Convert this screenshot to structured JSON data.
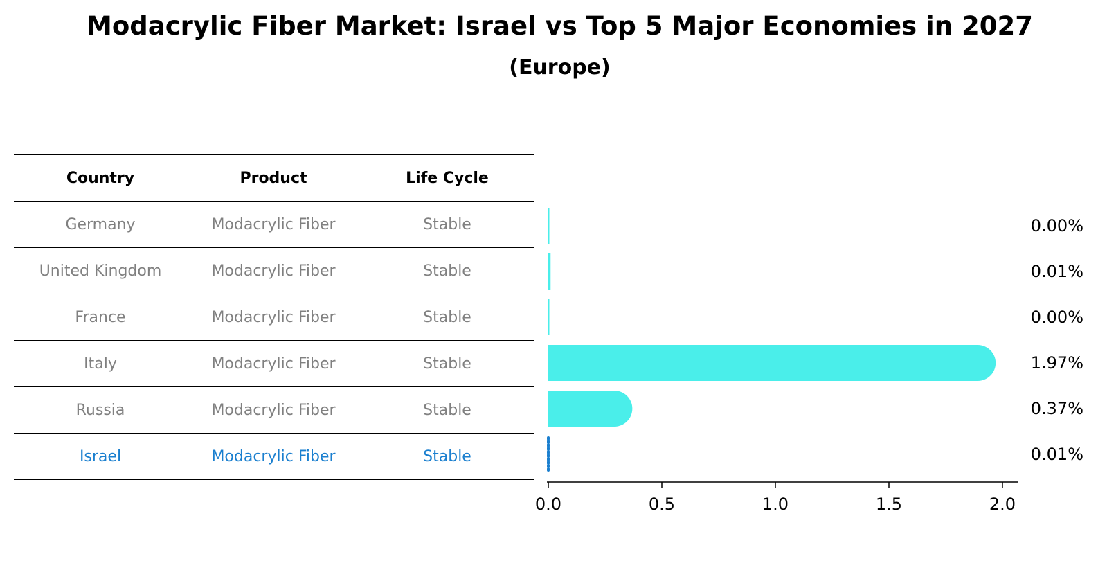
{
  "title": "Modacrylic Fiber Market: Israel vs Top 5 Major Economies in 2027",
  "subtitle": "(Europe)",
  "table": {
    "headers": [
      "Country",
      "Product",
      "Life Cycle"
    ],
    "rows": [
      {
        "country": "Germany",
        "product": "Modacrylic Fiber",
        "life_cycle": "Stable"
      },
      {
        "country": "United Kingdom",
        "product": "Modacrylic Fiber",
        "life_cycle": "Stable"
      },
      {
        "country": "France",
        "product": "Modacrylic Fiber",
        "life_cycle": "Stable"
      },
      {
        "country": "Italy",
        "product": "Modacrylic Fiber",
        "life_cycle": "Stable"
      },
      {
        "country": "Russia",
        "product": "Modacrylic Fiber",
        "life_cycle": "Stable"
      },
      {
        "country": "Israel",
        "product": "Modacrylic Fiber",
        "life_cycle": "Stable"
      }
    ]
  },
  "chart_data": {
    "type": "bar",
    "orientation": "horizontal",
    "categories": [
      "Germany",
      "United Kingdom",
      "France",
      "Italy",
      "Russia",
      "Israel"
    ],
    "values": [
      0.0,
      0.01,
      0.0,
      1.97,
      0.37,
      0.01
    ],
    "value_labels": [
      "0.00%",
      "0.01%",
      "0.00%",
      "1.97%",
      "0.37%",
      "0.01%"
    ],
    "xlim": [
      0,
      2.05
    ],
    "xticks": [
      0.0,
      0.5,
      1.0,
      1.5,
      2.0
    ],
    "xtick_labels": [
      "0.0",
      "0.5",
      "1.0",
      "1.5",
      "2.0"
    ],
    "highlight": "Israel",
    "grid": false,
    "colors": {
      "bar": "#4aeeea",
      "highlight_bar": "#1a7fcf",
      "highlight_text": "#1a7fcf",
      "text": "#808080"
    }
  }
}
